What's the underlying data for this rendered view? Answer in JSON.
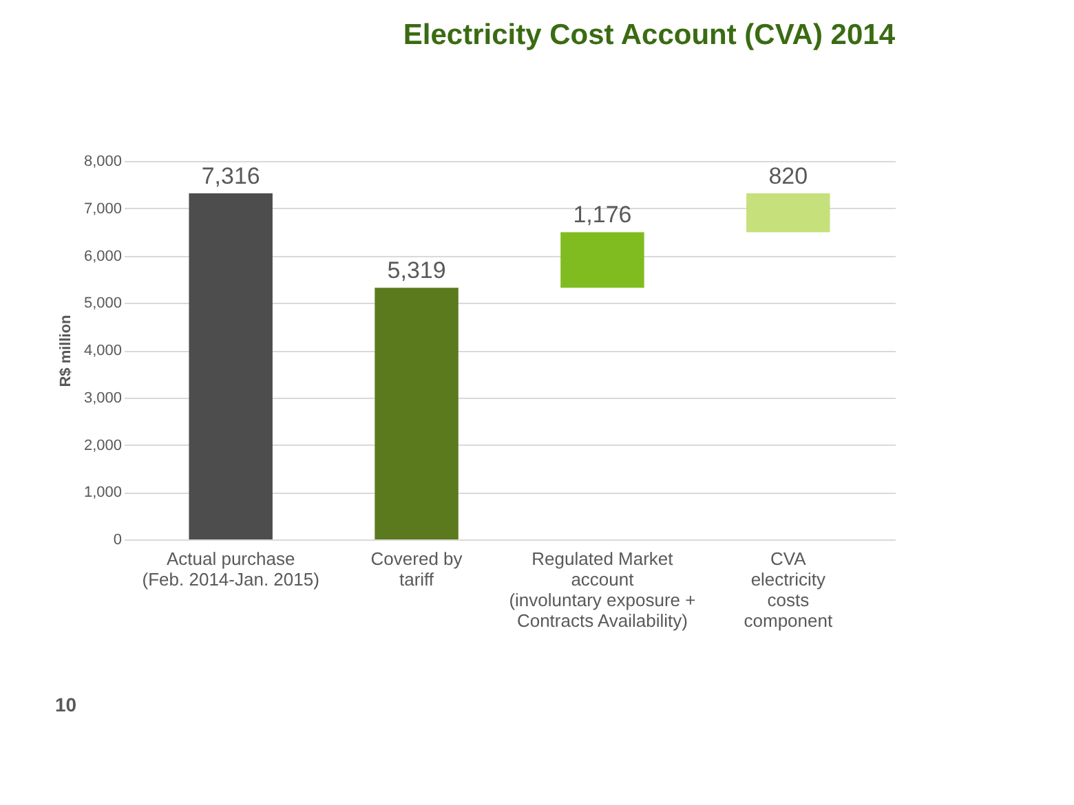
{
  "chart_data": {
    "type": "bar",
    "title": "Electricity Cost Account (CVA) 2014",
    "ylabel": "R$ million",
    "categories": [
      "Actual purchase\n(Feb. 2014-Jan. 2015)",
      "Covered by\ntariff",
      "Regulated Market\naccount\n(involuntary exposure +\nContracts Availability)",
      "CVA\nelectricity\ncosts\ncomponent"
    ],
    "values": [
      7316,
      5319,
      1176,
      820
    ],
    "base": [
      0,
      0,
      5319,
      6495
    ],
    "colors": [
      "#4d4d4d",
      "#5b7a1d",
      "#80bc1f",
      "#c6e07b"
    ],
    "ylim": [
      0,
      8000
    ],
    "yticks": [
      {
        "value": 0,
        "label": "0"
      },
      {
        "value": 1000,
        "label": "1,000"
      },
      {
        "value": 2000,
        "label": "2,000"
      },
      {
        "value": 3000,
        "label": "3,000"
      },
      {
        "value": 4000,
        "label": "4,000"
      },
      {
        "value": 5000,
        "label": "5,000"
      },
      {
        "value": 6000,
        "label": "6,000"
      },
      {
        "value": 7000,
        "label": "7,000"
      },
      {
        "value": 8000,
        "label": "8,000"
      }
    ],
    "grid": "y",
    "value_labels": [
      "7,316",
      "5,319",
      "1,176",
      "820"
    ],
    "annotations": [
      "10"
    ]
  }
}
